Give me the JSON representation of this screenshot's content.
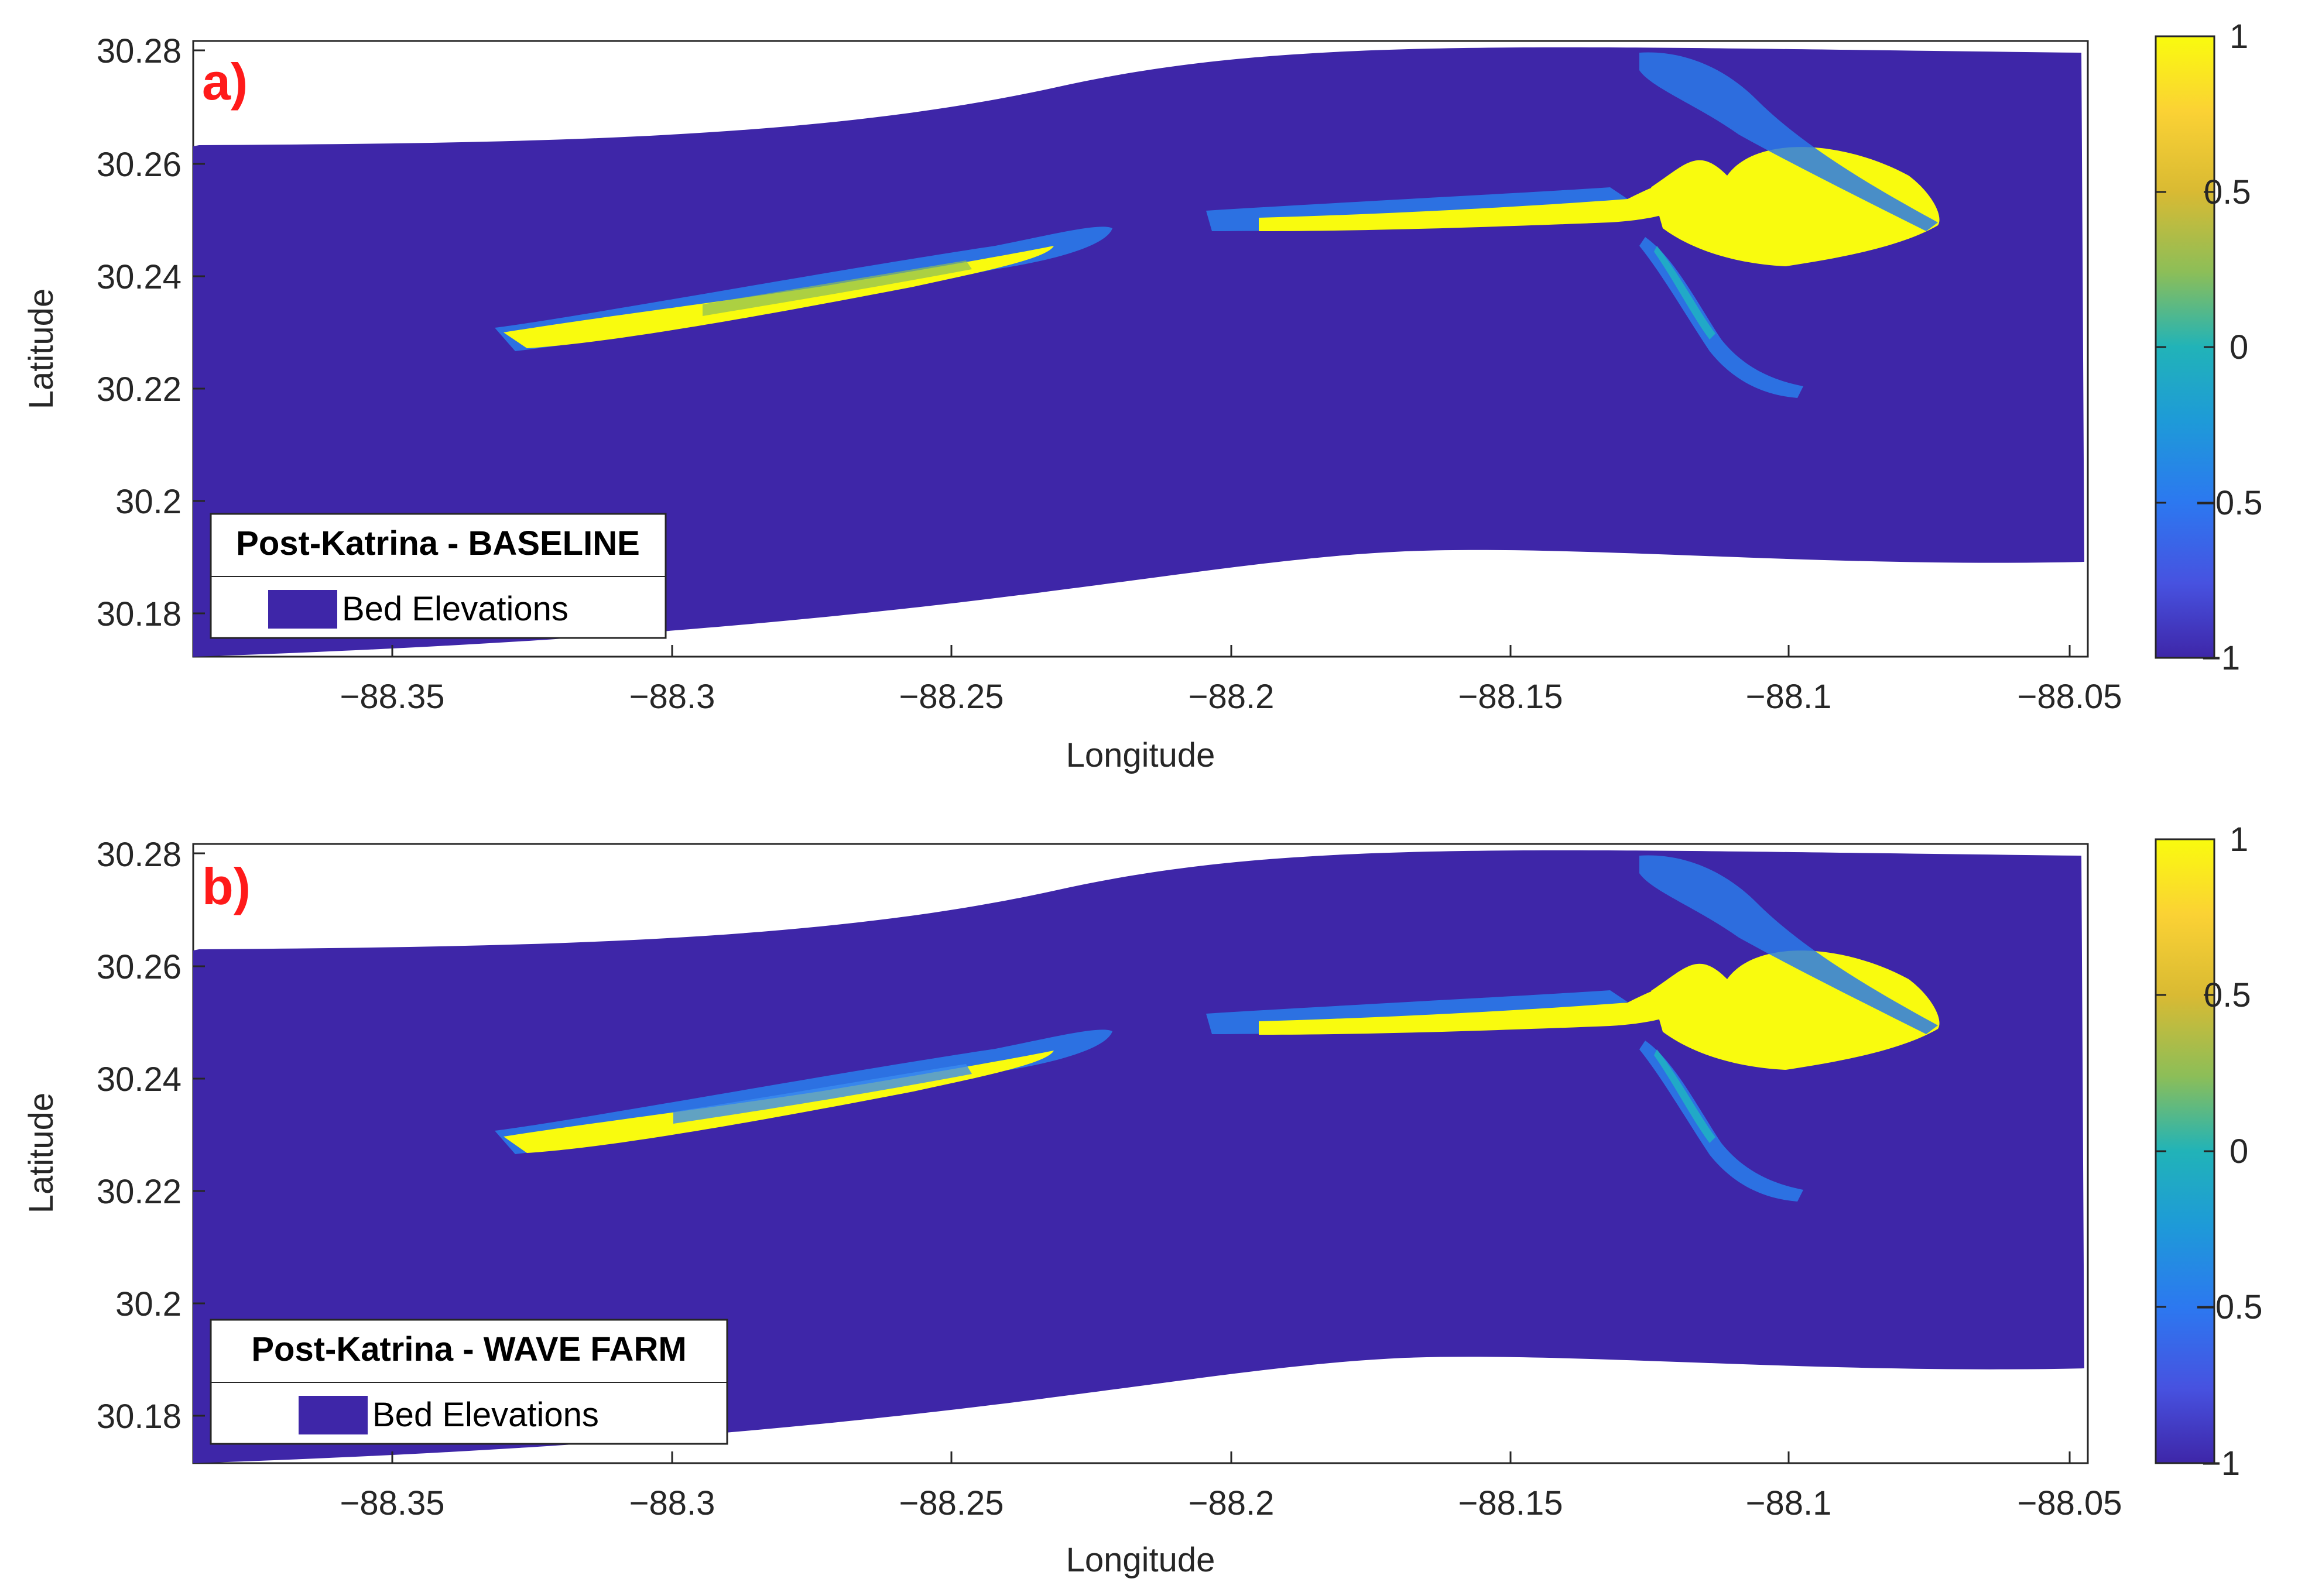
{
  "figure": {
    "panels": [
      {
        "letter": "a)",
        "legend_title": "Post-Katrina - BASELINE",
        "legend_item": "Bed Elevations",
        "xlabel": "Longitude",
        "ylabel": "Latitude",
        "xticks": [
          "−88.35",
          "−88.3",
          "−88.25",
          "−88.2",
          "−88.15",
          "−88.1",
          "−88.05"
        ],
        "yticks": [
          "30.28",
          "30.26",
          "30.24",
          "30.22",
          "30.2",
          "30.18"
        ],
        "colorbar_ticks": [
          "1",
          "0.5",
          "0",
          "−0.5",
          "−1"
        ]
      },
      {
        "letter": "b)",
        "legend_title": "Post-Katrina - WAVE FARM",
        "legend_item": "Bed Elevations",
        "xlabel": "Longitude",
        "ylabel": "Latitude",
        "xticks": [
          "−88.35",
          "−88.3",
          "−88.25",
          "−88.2",
          "−88.15",
          "−88.1",
          "−88.05"
        ],
        "yticks": [
          "30.28",
          "30.26",
          "30.24",
          "30.22",
          "30.2",
          "30.18"
        ],
        "colorbar_ticks": [
          "1",
          "0.5",
          "0",
          "−0.5",
          "−1"
        ]
      }
    ],
    "colors": {
      "water": "#3e26a8",
      "land": "#f9fb0e",
      "shallow": "#3b8cf0",
      "mid": "#1fb8c0",
      "sand": "#f4c43a",
      "letter": "#ff1a1a"
    }
  }
}
